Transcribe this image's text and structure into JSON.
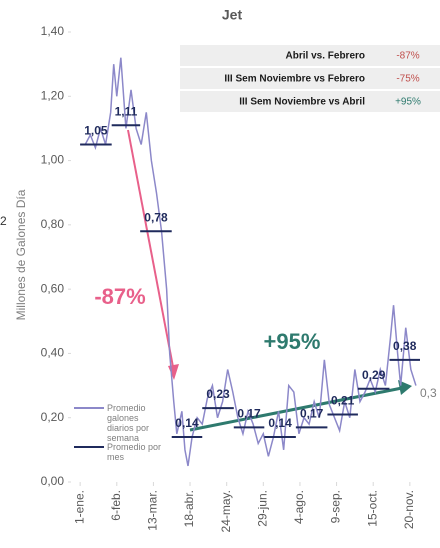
{
  "chart_data": {
    "type": "line",
    "title": "Jet",
    "y_label": "Millones de Galones Día",
    "xlim": [
      -8,
      334
    ],
    "ylim": [
      0,
      1.4
    ],
    "xticks": [
      {
        "value": 0,
        "label": "1-ene."
      },
      {
        "value": 36,
        "label": "6-feb."
      },
      {
        "value": 72,
        "label": "13-mar."
      },
      {
        "value": 108,
        "label": "18-abr."
      },
      {
        "value": 144,
        "label": "24-may."
      },
      {
        "value": 180,
        "label": "29-jun."
      },
      {
        "value": 216,
        "label": "4-ago."
      },
      {
        "value": 252,
        "label": "9-sep."
      },
      {
        "value": 288,
        "label": "15-oct."
      },
      {
        "value": 324,
        "label": "20-nov."
      }
    ],
    "yticks": [
      {
        "value": 0,
        "label": "0,00"
      },
      {
        "value": 0.2,
        "label": "0,20"
      },
      {
        "value": 0.4,
        "label": "0,40"
      },
      {
        "value": 0.6,
        "label": "0,60"
      },
      {
        "value": 0.8,
        "label": "0,80"
      },
      {
        "value": 1.0,
        "label": "1,00"
      },
      {
        "value": 1.2,
        "label": "1,20"
      },
      {
        "value": 1.4,
        "label": "1,40"
      }
    ],
    "series": [
      {
        "name": "Promedio galones diarios por semana",
        "color": "#8c88c9",
        "x": [
          0,
          5,
          10,
          15,
          20,
          25,
          30,
          33,
          36,
          40,
          45,
          50,
          55,
          60,
          65,
          70,
          75,
          80,
          85,
          88,
          92,
          95,
          100,
          103,
          106,
          110,
          115,
          120,
          125,
          130,
          135,
          140,
          145,
          150,
          155,
          160,
          165,
          170,
          175,
          180,
          185,
          190,
          195,
          200,
          205,
          210,
          215,
          220,
          225,
          230,
          235,
          240,
          245,
          250,
          255,
          260,
          265,
          270,
          275,
          280,
          285,
          290,
          295,
          300,
          305,
          308,
          312,
          315,
          320,
          325,
          330
        ],
        "values": [
          1.05,
          1.05,
          1.08,
          1.04,
          1.1,
          1.05,
          1.15,
          1.3,
          1.2,
          1.32,
          1.1,
          1.22,
          1.1,
          1.05,
          1.15,
          1.0,
          0.9,
          0.78,
          0.6,
          0.4,
          0.25,
          0.15,
          0.22,
          0.1,
          0.05,
          0.14,
          0.2,
          0.18,
          0.26,
          0.3,
          0.2,
          0.25,
          0.35,
          0.28,
          0.2,
          0.15,
          0.22,
          0.18,
          0.12,
          0.15,
          0.08,
          0.14,
          0.22,
          0.1,
          0.3,
          0.28,
          0.15,
          0.2,
          0.18,
          0.25,
          0.2,
          0.38,
          0.24,
          0.2,
          0.16,
          0.25,
          0.2,
          0.35,
          0.25,
          0.28,
          0.32,
          0.28,
          0.35,
          0.3,
          0.45,
          0.55,
          0.4,
          0.3,
          0.48,
          0.35,
          0.3
        ]
      },
      {
        "name": "Promedio por mes",
        "color": "#1f2a5c",
        "type": "step",
        "bins": [
          0,
          31,
          59,
          90,
          120,
          151,
          181,
          212,
          243,
          273,
          304,
          334
        ],
        "values": [
          1.05,
          1.11,
          0.78,
          0.14,
          0.23,
          0.17,
          0.14,
          0.17,
          0.21,
          0.29,
          0.38
        ],
        "value_labels": [
          "1,05",
          "1,11",
          "0,78",
          "0,14",
          "0,23",
          "0,17",
          "0,14",
          "0,17",
          "0,21",
          "0,29",
          "0,38"
        ]
      }
    ],
    "annotations": [
      "-87%",
      "+95%",
      "0,3",
      "2"
    ],
    "table": {
      "rows": [
        [
          "Abril vs. Febrero",
          "-87%"
        ],
        [
          "III Sem Noviembre vs Febrero",
          "-75%"
        ],
        [
          "III Sem Noviembre vs Abril",
          "+95%"
        ]
      ]
    }
  }
}
